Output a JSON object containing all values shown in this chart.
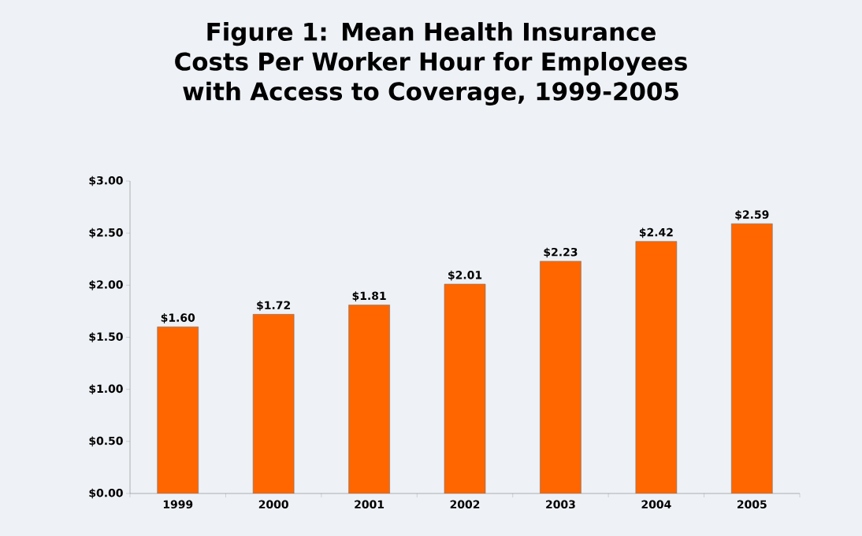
{
  "chart_data": {
    "type": "bar",
    "title": "Figure 1: Mean Health Insurance Costs Per Worker Hour for Employees with Access to Coverage, 1999-2005",
    "categories": [
      "1999",
      "2000",
      "2001",
      "2002",
      "2003",
      "2004",
      "2005"
    ],
    "values": [
      1.6,
      1.72,
      1.81,
      2.01,
      2.23,
      2.42,
      2.59
    ],
    "value_labels": [
      "$1.60",
      "$1.72",
      "$1.81",
      "$2.01",
      "$2.23",
      "$2.42",
      "$2.59"
    ],
    "color": "#ff6600",
    "ylim": [
      0,
      3
    ],
    "yticks": [
      {
        "value": 0,
        "label": "$0.00"
      },
      {
        "value": 0.5,
        "label": "$0.50"
      },
      {
        "value": 1,
        "label": "$1.00"
      },
      {
        "value": 1.5,
        "label": "$1.50"
      },
      {
        "value": 2,
        "label": "$2.00"
      },
      {
        "value": 2.5,
        "label": "$2.50"
      },
      {
        "value": 3,
        "label": "$3.00"
      }
    ]
  }
}
